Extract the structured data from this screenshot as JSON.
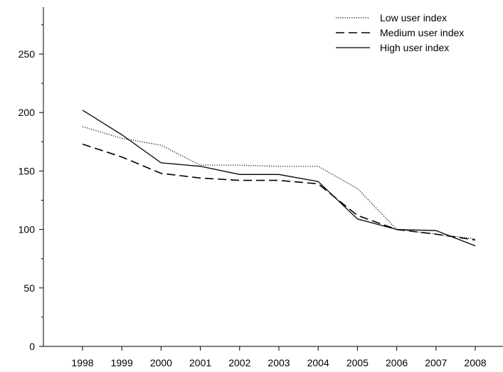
{
  "chart_data": {
    "type": "line",
    "title": "",
    "xlabel": "",
    "ylabel": "",
    "x": [
      1998,
      1999,
      2000,
      2001,
      2002,
      2003,
      2004,
      2005,
      2006,
      2007,
      2008
    ],
    "x_tick_labels": [
      "1998",
      "1999",
      "2000",
      "2001",
      "2002",
      "2003",
      "2004",
      "2005",
      "2006",
      "2007",
      "2008"
    ],
    "y_tick_labels": [
      "0",
      "50",
      "100",
      "150",
      "200",
      "250"
    ],
    "y_ticks": [
      0,
      50,
      100,
      150,
      200,
      250
    ],
    "ylim": [
      0,
      275
    ],
    "grid": false,
    "legend_position": "top-right",
    "series": [
      {
        "name": "Low user index",
        "style": "dotted",
        "color": "#000000",
        "values": [
          188,
          178,
          172,
          155,
          155,
          154,
          154,
          135,
          100,
          96,
          92
        ]
      },
      {
        "name": "Medium user index",
        "style": "dashed",
        "color": "#000000",
        "values": [
          173,
          162,
          148,
          144,
          142,
          142,
          139,
          112,
          100,
          96,
          91
        ]
      },
      {
        "name": "High user index",
        "style": "solid",
        "color": "#000000",
        "values": [
          202,
          181,
          157,
          154,
          147,
          147,
          141,
          109,
          100,
          99,
          86
        ]
      }
    ]
  }
}
